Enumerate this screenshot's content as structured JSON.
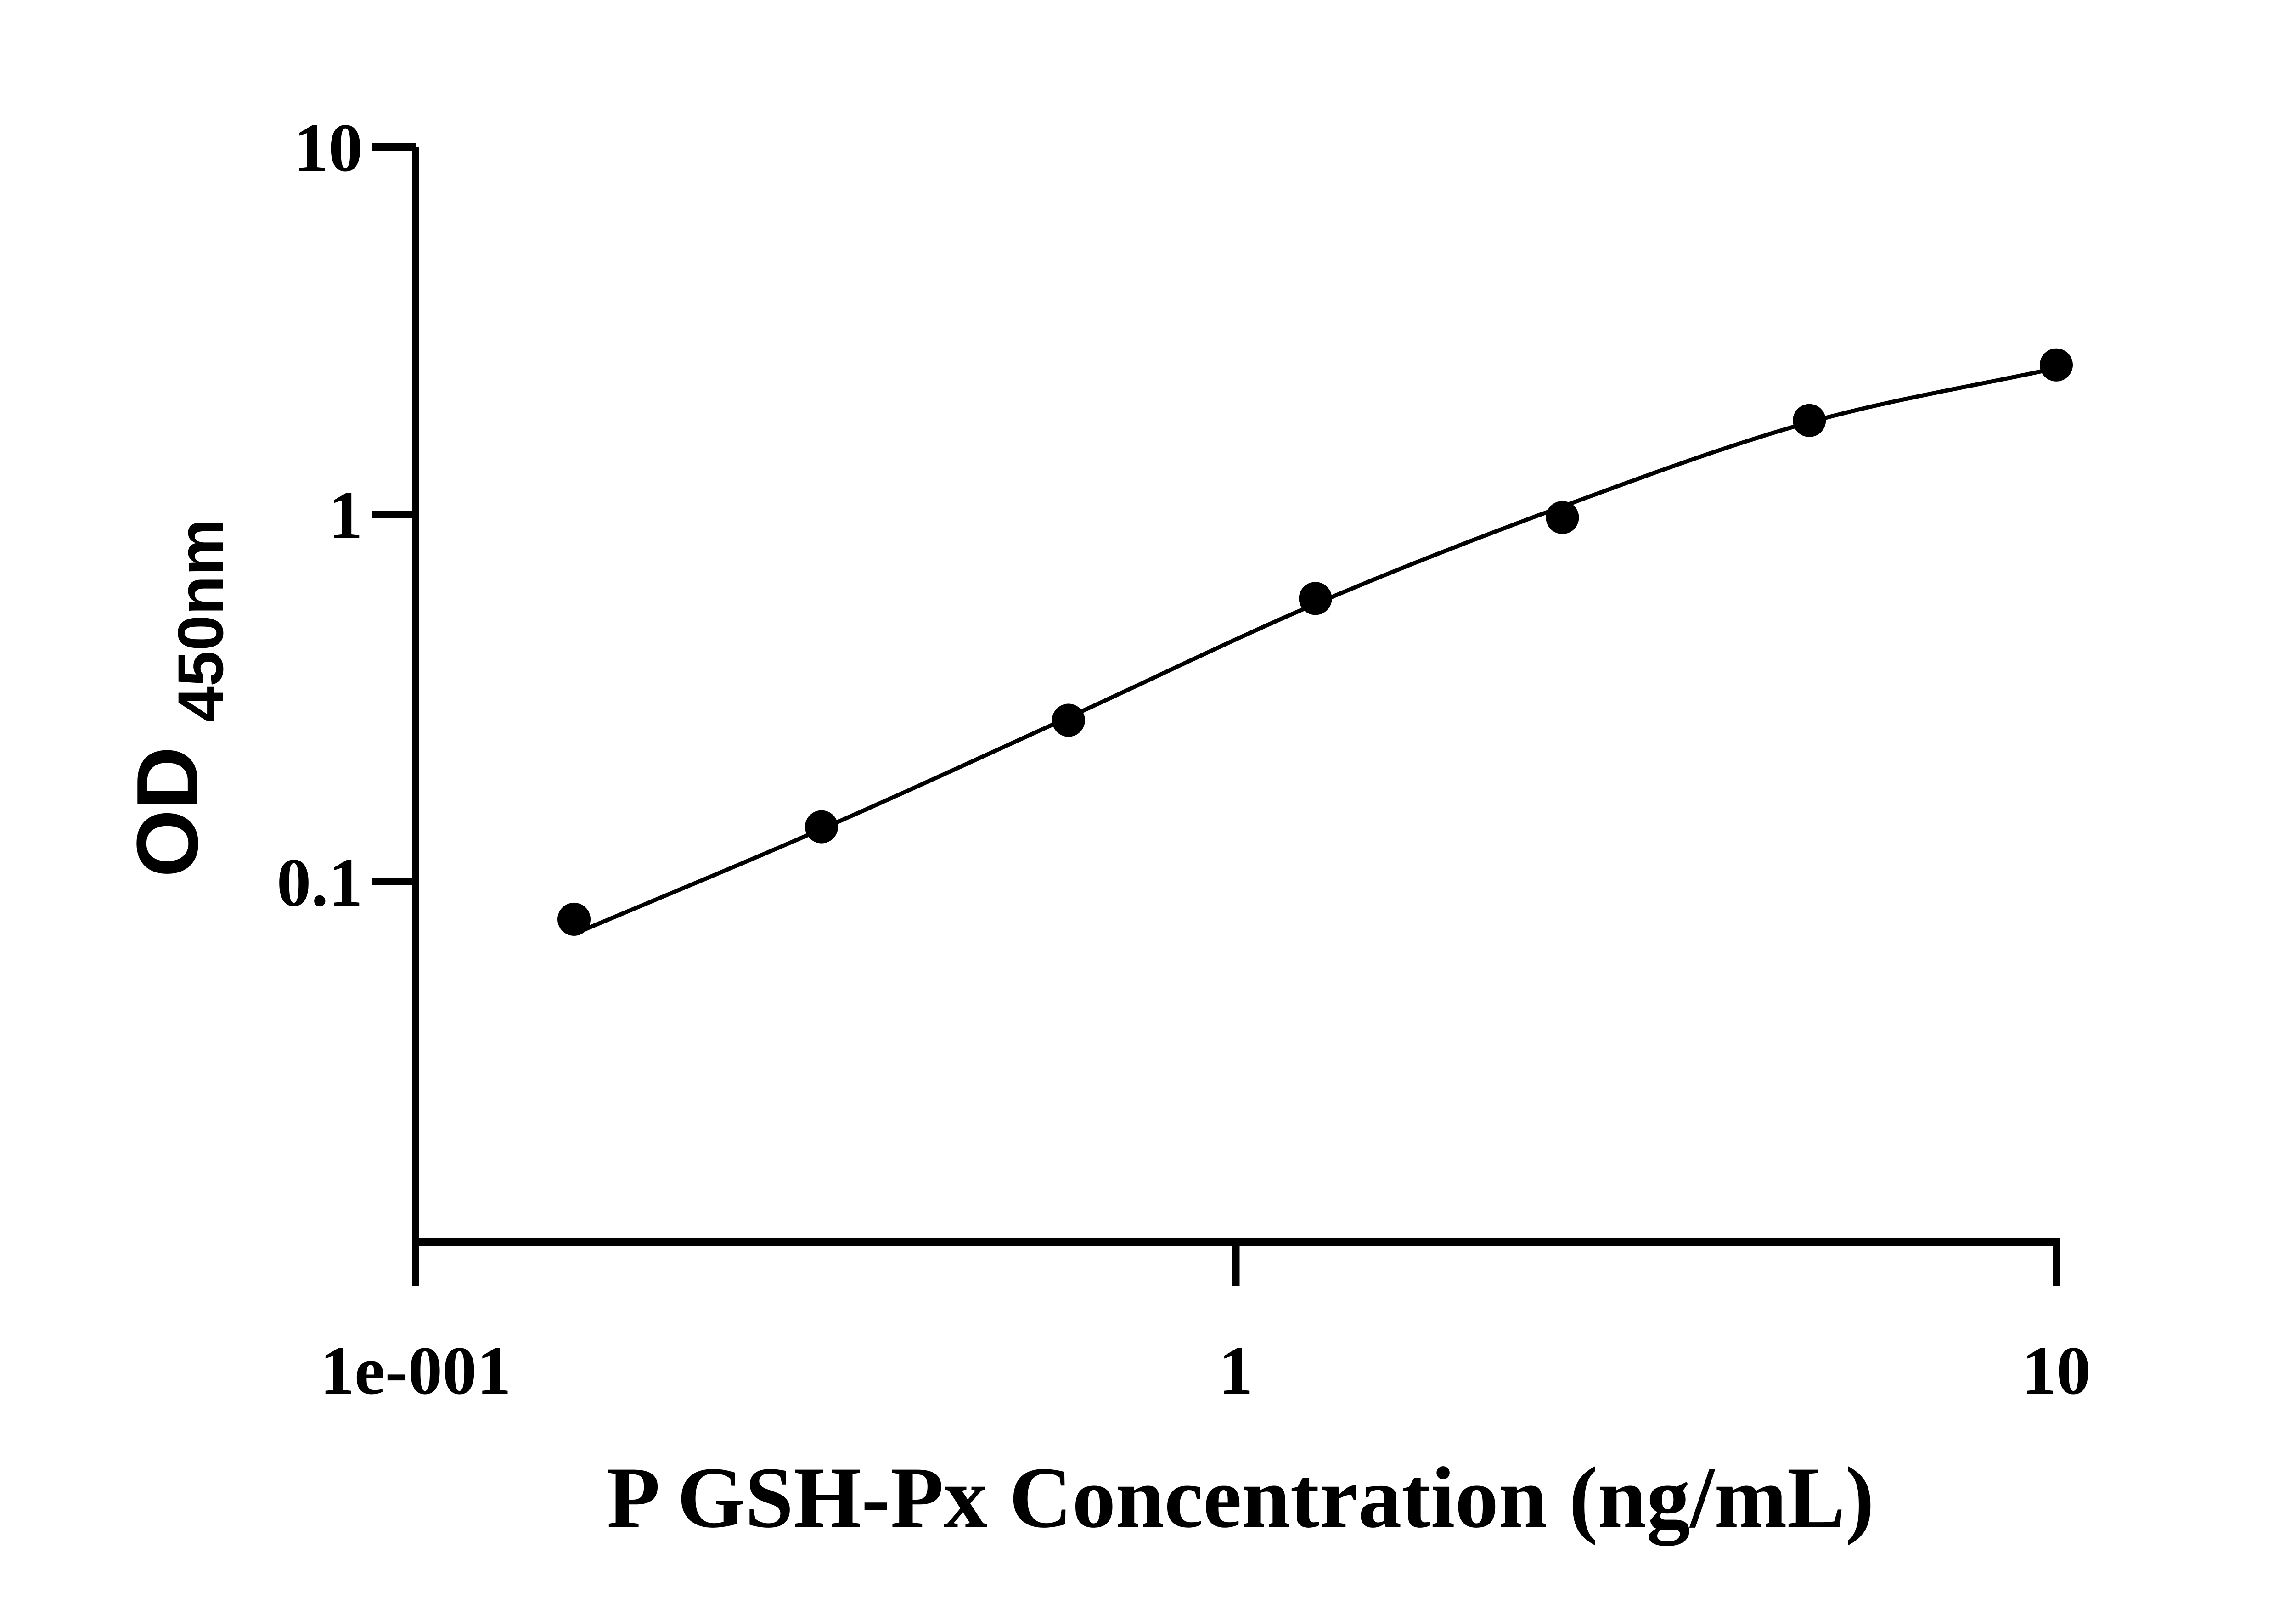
{
  "chart_data": {
    "type": "scatter",
    "title": "",
    "xlabel": "P GSH-Px Concentration (ng/mL)",
    "ylabel": "OD",
    "ylabel_subscript": "450nm",
    "x_scale": "log",
    "y_scale": "log",
    "xlim": [
      0.1,
      10
    ],
    "ylim": [
      0.01,
      10
    ],
    "x_ticks": [
      {
        "value": 0.1,
        "label": "1e-001"
      },
      {
        "value": 1,
        "label": "1"
      },
      {
        "value": 10,
        "label": "10"
      }
    ],
    "y_ticks": [
      {
        "value": 0.1,
        "label": "0.1"
      },
      {
        "value": 1,
        "label": "1"
      },
      {
        "value": 10,
        "label": "10"
      }
    ],
    "grid": false,
    "legend": "none",
    "series": [
      {
        "points": [
          {
            "x": 0.156,
            "y": 0.079
          },
          {
            "x": 0.3125,
            "y": 0.141
          },
          {
            "x": 0.625,
            "y": 0.275
          },
          {
            "x": 1.25,
            "y": 0.59
          },
          {
            "x": 2.5,
            "y": 0.98
          },
          {
            "x": 5,
            "y": 1.8
          },
          {
            "x": 10,
            "y": 2.55
          }
        ],
        "fit_curve": {
          "model": "4PL",
          "x_range": [
            0.156,
            10
          ],
          "points": [
            {
              "x": 0.156,
              "y": 0.072
            },
            {
              "x": 0.3125,
              "y": 0.139
            },
            {
              "x": 0.625,
              "y": 0.28
            },
            {
              "x": 1.25,
              "y": 0.57
            },
            {
              "x": 2.5,
              "y": 1.05
            },
            {
              "x": 5,
              "y": 1.78
            },
            {
              "x": 10,
              "y": 2.5
            }
          ]
        }
      }
    ],
    "colors": {
      "axis": "#000000",
      "points": "#000000",
      "curve": "#000000"
    }
  }
}
